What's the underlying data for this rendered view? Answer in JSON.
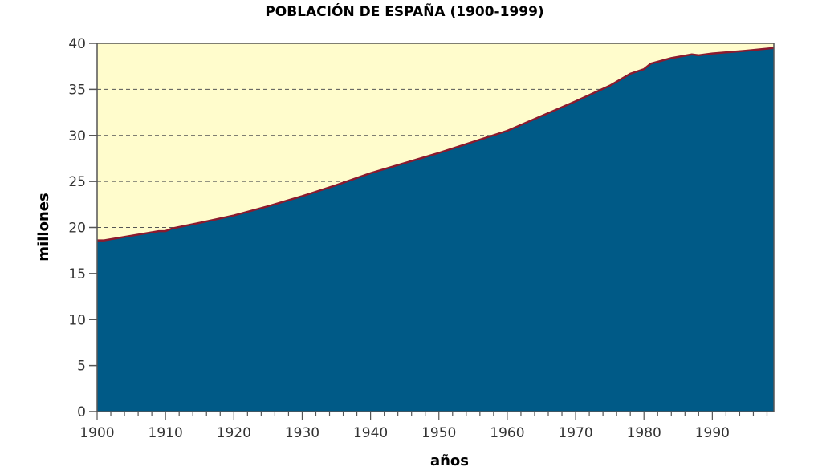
{
  "chart_data": {
    "type": "area",
    "title": "POBLACIÓN DE ESPAÑA (1900-1999)",
    "xlabel": "años",
    "ylabel": "millones",
    "xlim": [
      1900,
      1999
    ],
    "ylim": [
      0,
      40
    ],
    "x_ticks": [
      1900,
      1910,
      1920,
      1930,
      1940,
      1950,
      1960,
      1970,
      1980,
      1990
    ],
    "y_ticks": [
      0,
      5,
      10,
      15,
      20,
      25,
      30,
      35,
      40
    ],
    "grid": "horizontal dashed",
    "colors": {
      "fill": "#005a87",
      "line": "#8b1a2e",
      "background": "#fffccc"
    },
    "x": [
      1900,
      1901,
      1905,
      1909,
      1910,
      1911,
      1915,
      1920,
      1925,
      1930,
      1935,
      1940,
      1945,
      1950,
      1955,
      1960,
      1965,
      1970,
      1975,
      1978,
      1980,
      1981,
      1984,
      1987,
      1988,
      1990,
      1995,
      1999
    ],
    "y": [
      18.6,
      18.6,
      19.1,
      19.6,
      19.6,
      19.9,
      20.5,
      21.3,
      22.3,
      23.4,
      24.6,
      25.9,
      27.0,
      28.1,
      29.3,
      30.5,
      32.1,
      33.7,
      35.4,
      36.7,
      37.2,
      37.8,
      38.4,
      38.8,
      38.7,
      38.9,
      39.2,
      39.5
    ]
  }
}
